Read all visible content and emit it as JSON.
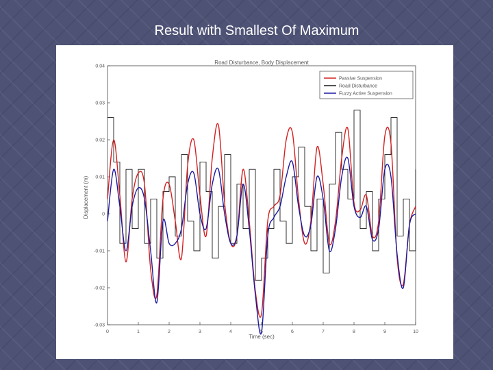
{
  "slide": {
    "title": "Result with Smallest Of Maximum"
  },
  "chart_data": {
    "type": "line",
    "title": "Road Disturbance, Body Displacement",
    "xlabel": "Time (sec)",
    "ylabel": "Displacement (m)",
    "xlim": [
      0,
      10
    ],
    "ylim": [
      -0.03,
      0.04
    ],
    "xticks": [
      0,
      1,
      2,
      3,
      4,
      5,
      6,
      7,
      8,
      9,
      10
    ],
    "yticks": [
      -0.03,
      -0.02,
      -0.01,
      0,
      0.01,
      0.02,
      0.03,
      0.04
    ],
    "xtick_labels": [
      "0",
      "1",
      "2",
      "3",
      "4",
      "5",
      "6",
      "7",
      "8",
      "9",
      "10"
    ],
    "ytick_labels": [
      "-0.03",
      "-0.02",
      "-0.01",
      "0",
      "0.01",
      "0.02",
      "0.03",
      "0.04"
    ],
    "grid": false,
    "legend_position": "top-right",
    "colors": {
      "passive": "#d42020",
      "road": "#1a1a1a",
      "fuzzy": "#1a1aa0"
    },
    "series": [
      {
        "name": "Passive Suspension",
        "color": "#d42020",
        "x": [
          0,
          0.2,
          0.4,
          0.6,
          0.8,
          1.0,
          1.2,
          1.4,
          1.6,
          1.8,
          2.0,
          2.2,
          2.4,
          2.6,
          2.8,
          3.0,
          3.2,
          3.4,
          3.6,
          3.8,
          4.0,
          4.2,
          4.4,
          4.6,
          4.8,
          5.0,
          5.2,
          5.4,
          5.6,
          5.8,
          6.0,
          6.2,
          6.4,
          6.6,
          6.8,
          7.0,
          7.2,
          7.4,
          7.6,
          7.8,
          8.0,
          8.2,
          8.4,
          8.6,
          8.8,
          9.0,
          9.2,
          9.4,
          9.6,
          9.8,
          10.0
        ],
        "y": [
          0.004,
          0.02,
          0.005,
          -0.013,
          0.004,
          0.011,
          0.008,
          -0.015,
          -0.022,
          0.004,
          0.008,
          -0.002,
          -0.012,
          0.013,
          0.02,
          0.005,
          -0.006,
          0.015,
          0.024,
          0.003,
          -0.008,
          -0.006,
          0.012,
          -0.002,
          -0.021,
          -0.027,
          -0.002,
          0.002,
          0.005,
          0.02,
          0.022,
          0.004,
          -0.008,
          -0.002,
          0.018,
          0.008,
          -0.008,
          -0.002,
          0.015,
          0.023,
          0.003,
          0.001,
          0.005,
          -0.006,
          -0.002,
          0.021,
          0.019,
          -0.012,
          -0.019,
          -0.003,
          0.002
        ]
      },
      {
        "name": "Road Disturbance",
        "color": "#1a1a1a",
        "x": [
          0,
          0.2,
          0.4,
          0.6,
          0.8,
          1.0,
          1.2,
          1.4,
          1.6,
          1.8,
          2.0,
          2.2,
          2.4,
          2.6,
          2.8,
          3.0,
          3.2,
          3.4,
          3.6,
          3.8,
          4.0,
          4.2,
          4.4,
          4.6,
          4.8,
          5.0,
          5.2,
          5.4,
          5.6,
          5.8,
          6.0,
          6.2,
          6.4,
          6.6,
          6.8,
          7.0,
          7.2,
          7.4,
          7.6,
          7.8,
          8.0,
          8.2,
          8.4,
          8.6,
          8.8,
          9.0,
          9.2,
          9.4,
          9.6,
          9.8,
          10.0
        ],
        "y": [
          0.026,
          0.014,
          -0.008,
          0.012,
          -0.004,
          0.012,
          -0.008,
          0.004,
          -0.012,
          0.006,
          0.01,
          -0.006,
          0.016,
          -0.002,
          -0.01,
          0.014,
          0.006,
          -0.012,
          0.002,
          0.016,
          -0.008,
          0.008,
          -0.004,
          0.012,
          -0.018,
          -0.012,
          -0.004,
          0.012,
          -0.002,
          -0.008,
          0.01,
          0.018,
          0.002,
          -0.01,
          0.004,
          -0.016,
          0.008,
          0.022,
          0.012,
          0.004,
          0.028,
          -0.004,
          0.006,
          -0.01,
          0.004,
          0.016,
          0.026,
          -0.006,
          0.004,
          -0.01,
          0.012
        ]
      },
      {
        "name": "Fuzzy Active Suspension",
        "color": "#1a1aa0",
        "x": [
          0,
          0.2,
          0.4,
          0.6,
          0.8,
          1.0,
          1.2,
          1.4,
          1.6,
          1.8,
          2.0,
          2.2,
          2.4,
          2.6,
          2.8,
          3.0,
          3.2,
          3.4,
          3.6,
          3.8,
          4.0,
          4.2,
          4.4,
          4.6,
          4.8,
          5.0,
          5.2,
          5.4,
          5.6,
          5.8,
          6.0,
          6.2,
          6.4,
          6.6,
          6.8,
          7.0,
          7.2,
          7.4,
          7.6,
          7.8,
          8.0,
          8.2,
          8.4,
          8.6,
          8.8,
          9.0,
          9.2,
          9.4,
          9.6,
          9.8,
          10.0
        ],
        "y": [
          -0.002,
          0.012,
          0.002,
          -0.01,
          0.002,
          0.007,
          0.004,
          -0.01,
          -0.024,
          -0.002,
          -0.008,
          -0.008,
          -0.004,
          0.008,
          0.011,
          0.0,
          -0.004,
          0.008,
          0.012,
          0.0,
          -0.008,
          -0.006,
          0.008,
          -0.004,
          -0.022,
          -0.032,
          -0.006,
          -0.001,
          0.002,
          0.01,
          0.014,
          0.002,
          -0.006,
          -0.003,
          0.01,
          0.004,
          -0.01,
          -0.004,
          0.01,
          0.015,
          0.002,
          -0.001,
          0.002,
          -0.007,
          -0.004,
          0.012,
          0.01,
          -0.011,
          -0.02,
          -0.003,
          0.0
        ]
      }
    ]
  }
}
